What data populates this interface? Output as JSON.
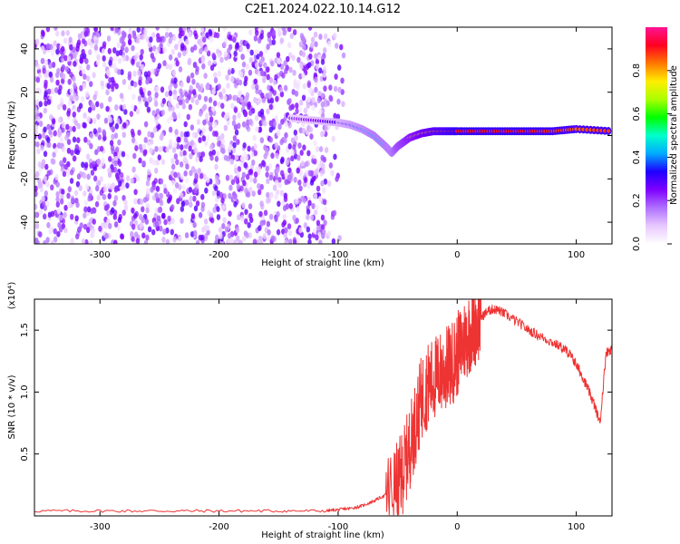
{
  "title": "C2E1.2024.022.10.14.G12",
  "colors": {
    "snr_line": "#ee3333",
    "colormap_stops": [
      "#ffffff",
      "#e8c8ff",
      "#b070ff",
      "#7f00ff",
      "#1e00ff",
      "#00aaff",
      "#00ffcc",
      "#00ff00",
      "#aaff00",
      "#ffee00",
      "#ff7700",
      "#ff0022",
      "#ff1493"
    ]
  },
  "chart_data": [
    {
      "type": "heatmap",
      "title": "C2E1.2024.022.10.14.G12",
      "xlabel": "Height of straight line (km)",
      "ylabel": "Frequency (Hz)",
      "xlim": [
        -355,
        130
      ],
      "ylim": [
        -50,
        50
      ],
      "xticks": [
        -300,
        -200,
        -100,
        0,
        100
      ],
      "yticks": [
        40,
        20,
        0,
        -20,
        -40
      ],
      "grid": false,
      "colorbar": {
        "label": "Normalized spectral amplitude",
        "range": [
          0,
          1
        ],
        "ticks": [
          0.0,
          0.2,
          0.4,
          0.6,
          0.8
        ]
      },
      "signal_track": {
        "x": [
          -140,
          -120,
          -100,
          -90,
          -80,
          -70,
          -60,
          -55,
          -50,
          -45,
          -40,
          -30,
          -20,
          -10,
          0,
          20,
          40,
          60,
          80,
          100,
          130
        ],
        "y": [
          8,
          7,
          6,
          5,
          3,
          0,
          -5,
          -8,
          -5,
          -3,
          -1,
          1,
          2,
          2,
          2,
          2,
          2,
          2,
          2,
          3,
          2
        ],
        "amplitude": [
          0.2,
          0.25,
          0.3,
          0.35,
          0.4,
          0.45,
          0.45,
          0.45,
          0.55,
          0.6,
          0.65,
          0.75,
          0.8,
          0.85,
          0.9,
          0.9,
          0.9,
          0.9,
          0.88,
          0.85,
          0.88
        ]
      }
    },
    {
      "type": "line",
      "xlabel": "Height of straight line (km)",
      "ylabel": "SNR (10 * v/v)",
      "y_multiplier_label": "(x10⁴)",
      "xlim": [
        -355,
        130
      ],
      "ylim": [
        0,
        1.75
      ],
      "xticks": [
        -300,
        -200,
        -100,
        0,
        100
      ],
      "yticks": [
        0.5,
        1.0,
        1.5
      ],
      "grid": false,
      "series": [
        {
          "x": [
            -355,
            -300,
            -250,
            -200,
            -150,
            -110,
            -100,
            -90,
            -80,
            -70,
            -60,
            -50,
            -45,
            -40,
            -35,
            -30,
            -25,
            -20,
            -15,
            -10,
            -5,
            0,
            5,
            10,
            15,
            20,
            25,
            30,
            35,
            40,
            50,
            60,
            70,
            80,
            90,
            95,
            100,
            105,
            110,
            115,
            120,
            125,
            130
          ],
          "y": [
            0.04,
            0.04,
            0.04,
            0.04,
            0.04,
            0.04,
            0.05,
            0.06,
            0.08,
            0.12,
            0.17,
            0.25,
            0.38,
            0.55,
            0.75,
            0.95,
            1.05,
            1.1,
            1.15,
            1.18,
            1.22,
            1.3,
            1.4,
            1.48,
            1.55,
            1.6,
            1.65,
            1.67,
            1.66,
            1.63,
            1.57,
            1.5,
            1.45,
            1.4,
            1.35,
            1.3,
            1.22,
            1.13,
            1.02,
            0.9,
            0.75,
            1.32,
            1.35
          ]
        }
      ]
    }
  ]
}
